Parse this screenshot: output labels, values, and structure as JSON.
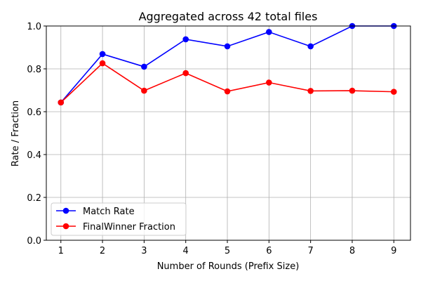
{
  "chart_data": {
    "type": "line",
    "title": "Aggregated across 42 total files",
    "xlabel": "Number of Rounds (Prefix Size)",
    "ylabel": "Rate / Fraction",
    "x": [
      1,
      2,
      3,
      4,
      5,
      6,
      7,
      8,
      9
    ],
    "xlim": [
      0.65,
      9.4
    ],
    "ylim": [
      0.0,
      1.0
    ],
    "xticks": [
      1,
      2,
      3,
      4,
      5,
      6,
      7,
      8,
      9
    ],
    "yticks": [
      0.0,
      0.2,
      0.4,
      0.6,
      0.8,
      1.0
    ],
    "ytick_labels": [
      "0.0",
      "0.2",
      "0.4",
      "0.6",
      "0.8",
      "1.0"
    ],
    "grid": true,
    "legend_position": "bottom-left",
    "series": [
      {
        "name": "Match Rate",
        "color": "#0000ff",
        "marker": "circle",
        "values": [
          0.643,
          0.869,
          0.81,
          0.938,
          0.905,
          0.972,
          0.905,
          1.0,
          1.0
        ]
      },
      {
        "name": "FinalWinner Fraction",
        "color": "#ff0000",
        "marker": "circle",
        "values": [
          0.643,
          0.826,
          0.698,
          0.78,
          0.695,
          0.736,
          0.697,
          0.698,
          0.693
        ]
      }
    ]
  }
}
